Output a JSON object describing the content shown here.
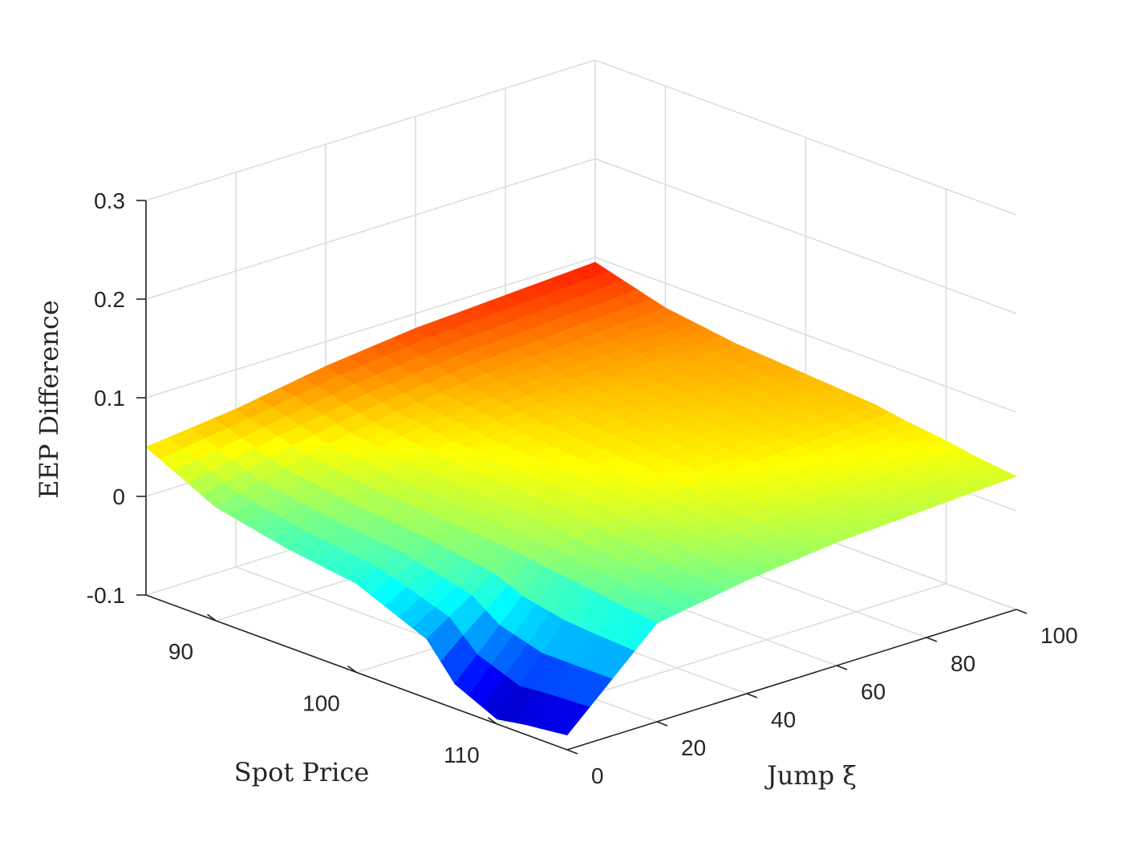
{
  "chart_data": {
    "type": "surface",
    "title": "",
    "xlabel": "Spot Price",
    "ylabel": "Jump ξ",
    "zlabel": "EEP Difference",
    "xlim": [
      85,
      115
    ],
    "ylim": [
      0,
      100
    ],
    "zlim": [
      -0.1,
      0.3
    ],
    "x_ticks": [
      "90",
      "100",
      "110"
    ],
    "y_ticks": [
      "0",
      "20",
      "40",
      "60",
      "80",
      "100"
    ],
    "z_ticks": [
      "-0.1",
      "0",
      "0.1",
      "0.2",
      "0.3"
    ],
    "x_tick_values": [
      90,
      100,
      110
    ],
    "y_tick_values": [
      0,
      20,
      40,
      60,
      80,
      100
    ],
    "z_tick_values": [
      -0.1,
      0,
      0.1,
      0.2,
      0.3
    ],
    "grid": true,
    "colormap": "jet",
    "color_range": [
      -0.1,
      0.13
    ],
    "surface_samples": {
      "description_of_axes": "rows: Spot Price values; columns: Jump values",
      "spot_price": [
        85,
        90,
        95,
        100,
        105,
        107,
        110,
        112,
        115
      ],
      "jump": [
        0,
        20,
        40,
        60,
        80,
        100
      ],
      "eep_difference": [
        [
          0.05,
          0.06,
          0.075,
          0.085,
          0.09,
          0.095
        ],
        [
          0.015,
          0.04,
          0.055,
          0.065,
          0.07,
          0.075
        ],
        [
          0.0,
          0.03,
          0.045,
          0.055,
          0.06,
          0.065
        ],
        [
          -0.01,
          0.025,
          0.04,
          0.05,
          0.055,
          0.06
        ],
        [
          -0.04,
          0.02,
          0.035,
          0.045,
          0.05,
          0.055
        ],
        [
          -0.075,
          0.015,
          0.03,
          0.04,
          0.045,
          0.05
        ],
        [
          -0.095,
          0.01,
          0.025,
          0.035,
          0.04,
          0.045
        ],
        [
          -0.09,
          0.005,
          0.02,
          0.03,
          0.035,
          0.04
        ],
        [
          -0.085,
          0.0,
          0.015,
          0.025,
          0.03,
          0.035
        ]
      ]
    }
  }
}
